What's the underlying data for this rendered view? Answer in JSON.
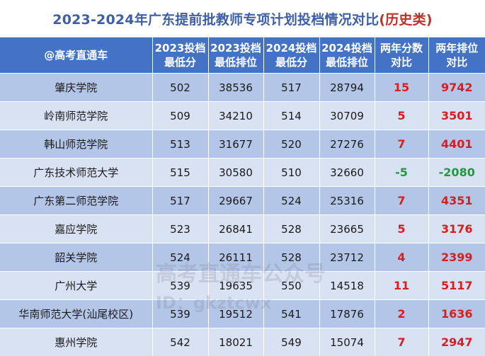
{
  "title": {
    "main": "2023-2024年广东提前批教师专项计划投档情况对比",
    "tag": "(历史类)"
  },
  "header": [
    "@高考直通车",
    [
      "2023投档",
      "最低分"
    ],
    [
      "2023投档",
      "最低排位"
    ],
    [
      "2024投档",
      "最低分"
    ],
    [
      "2024投档",
      "最低排位"
    ],
    [
      "两年分数",
      "对比"
    ],
    [
      "两年排位",
      "对比"
    ]
  ],
  "rows": [
    {
      "school": "肇庆学院",
      "s2023": "502",
      "r2023": "38536",
      "s2024": "517",
      "r2024": "28794",
      "score_diff": "15",
      "rank_diff": "9742"
    },
    {
      "school": "岭南师范学院",
      "s2023": "509",
      "r2023": "34210",
      "s2024": "514",
      "r2024": "30709",
      "score_diff": "5",
      "rank_diff": "3501"
    },
    {
      "school": "韩山师范学院",
      "s2023": "513",
      "r2023": "31677",
      "s2024": "520",
      "r2024": "27276",
      "score_diff": "7",
      "rank_diff": "4401"
    },
    {
      "school": "广东技术师范大学",
      "s2023": "515",
      "r2023": "30580",
      "s2024": "510",
      "r2024": "32660",
      "score_diff": "-5",
      "rank_diff": "-2080"
    },
    {
      "school": "广东第二师范学院",
      "s2023": "517",
      "r2023": "29667",
      "s2024": "524",
      "r2024": "25316",
      "score_diff": "7",
      "rank_diff": "4351"
    },
    {
      "school": "嘉应学院",
      "s2023": "523",
      "r2023": "26841",
      "s2024": "528",
      "r2024": "23665",
      "score_diff": "5",
      "rank_diff": "3176"
    },
    {
      "school": "韶关学院",
      "s2023": "524",
      "r2023": "26111",
      "s2024": "528",
      "r2024": "23712",
      "score_diff": "4",
      "rank_diff": "2399"
    },
    {
      "school": "广州大学",
      "s2023": "539",
      "r2023": "19635",
      "s2024": "550",
      "r2024": "14518",
      "score_diff": "11",
      "rank_diff": "5117"
    },
    {
      "school": "华南师范大学(汕尾校区)",
      "s2023": "539",
      "r2023": "19512",
      "s2024": "541",
      "r2024": "17876",
      "score_diff": "2",
      "rank_diff": "1636"
    },
    {
      "school": "惠州学院",
      "s2023": "542",
      "r2023": "18021",
      "s2024": "549",
      "r2024": "15074",
      "score_diff": "7",
      "rank_diff": "2947"
    }
  ],
  "colors": {
    "positive": "#d42020",
    "negative": "#1f9a3c",
    "header_bg": "#4472c4",
    "row_dark": "#b4c6e7",
    "row_light": "#d9e2f3"
  },
  "watermark": {
    "line1": "高考直通车公众号",
    "line2": "ID：gkztcwx"
  }
}
